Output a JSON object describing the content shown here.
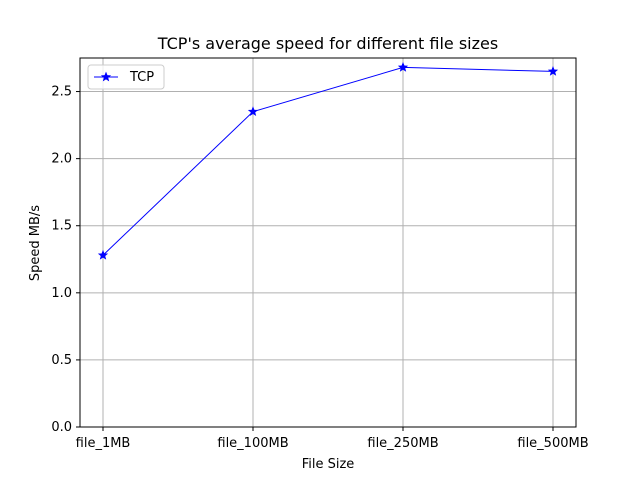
{
  "chart_data": {
    "type": "line",
    "title": "TCP's average speed for different file sizes",
    "xlabel": "File Size",
    "ylabel": "Speed MB/s",
    "categories": [
      "file_1MB",
      "file_100MB",
      "file_250MB",
      "file_500MB"
    ],
    "series": [
      {
        "name": "TCP",
        "values": [
          1.28,
          2.35,
          2.68,
          2.65
        ],
        "color": "#0000ff",
        "marker": "star"
      }
    ],
    "ylim": [
      0.0,
      2.75
    ],
    "yticks": [
      "0.0",
      "0.5",
      "1.0",
      "1.5",
      "2.0",
      "2.5"
    ],
    "grid": true,
    "legend_position": "top-left"
  }
}
